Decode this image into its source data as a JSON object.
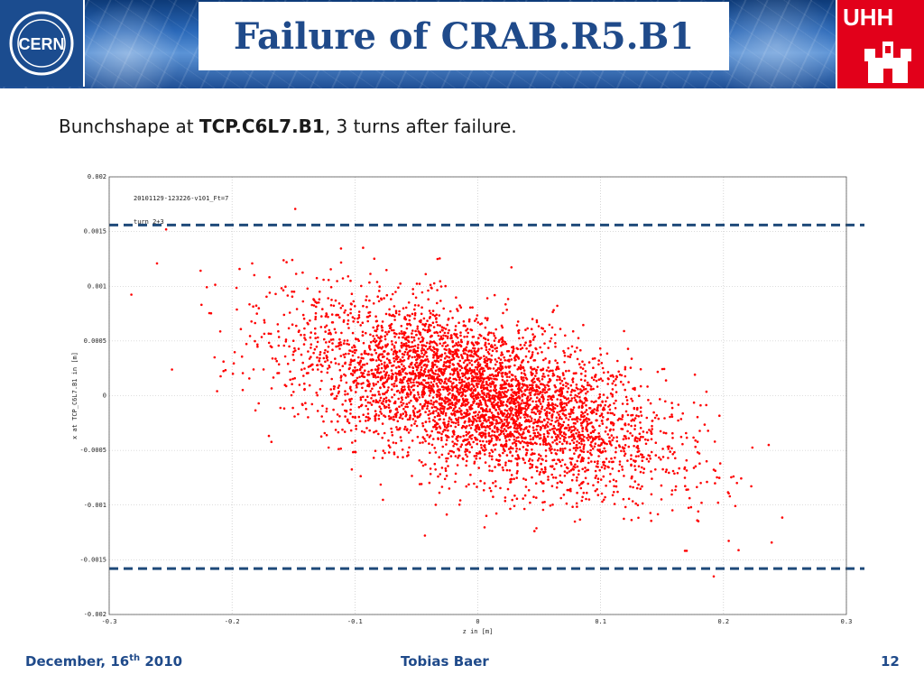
{
  "header": {
    "title": "Failure of CRAB.R5.B1",
    "left_logo_text": "CERN",
    "right_logo_text": "UHH"
  },
  "subtitle": {
    "prefix": "Bunchshape at ",
    "bold": "TCP.C6L7.B1",
    "suffix": ", 3 turns after failure."
  },
  "footer": {
    "date": "December, 16",
    "date_sup": "th",
    "date_year": " 2010",
    "author": "Tobias Baer",
    "page": "12"
  },
  "colors": {
    "points": "#ff0000",
    "limit_lines": "#1f4a7a",
    "title": "#1f4a8a",
    "grid": "#bbbbbb"
  },
  "chart_data": {
    "type": "scatter",
    "title": "",
    "xlabel": "z in [m]",
    "ylabel": "x at TCP_C6L7.B1 in [m]",
    "xlim": [
      -0.3,
      0.3
    ],
    "ylim": [
      -0.002,
      0.002
    ],
    "xticks": [
      "-0.3",
      "-0.2",
      "-0.1",
      "0",
      "0.1",
      "0.2",
      "0.3"
    ],
    "yticks": [
      "0.002",
      "0.0015",
      "0.001",
      "0.0005",
      "0",
      "-0.0005",
      "-0.001",
      "-0.0015",
      "-0.002"
    ],
    "annotations": [
      "20101129-123226-v101_Ft=7",
      "turn 2+3"
    ],
    "grid": true,
    "limit_lines": [
      0.00156,
      -0.00158
    ],
    "series": [
      {
        "color": "#ff0000",
        "points_described_as": "elliptical cloud centered near (0, 0), tilted with negative correlation",
        "x_mean": 0.0,
        "x_std": 0.075,
        "y_mean": 0.0,
        "y_std": 0.00042,
        "correlation": -0.55,
        "count": 4500
      }
    ]
  }
}
